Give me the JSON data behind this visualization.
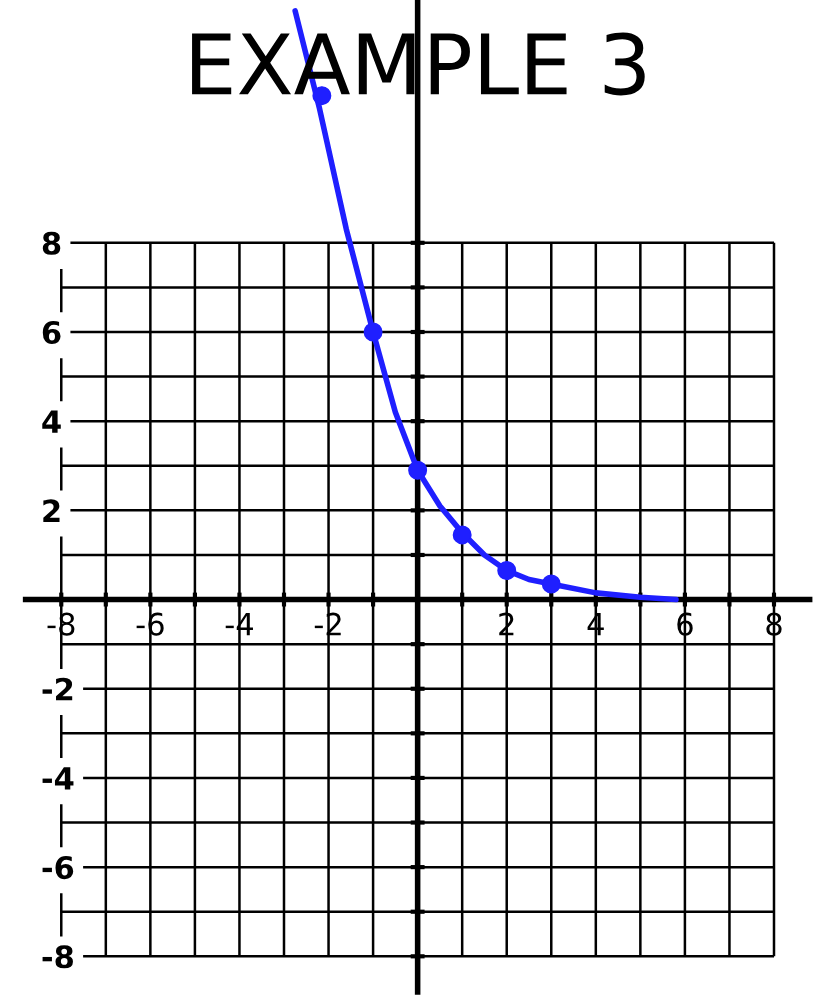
{
  "chart_data": {
    "type": "line",
    "title": "EXAMPLE 3",
    "xlim": [
      -8.8,
      8.8
    ],
    "ylim": [
      -8.8,
      13.4
    ],
    "xticks": [
      -8,
      {
        "value": -7,
        "label": null
      },
      -6,
      {
        "value": -5,
        "label": null
      },
      -4,
      {
        "value": -3,
        "label": null
      },
      -2,
      {
        "value": -1,
        "label": null
      },
      {
        "value": 0,
        "label": null
      },
      {
        "value": 1,
        "label": null
      },
      2,
      {
        "value": 3,
        "label": null
      },
      4,
      {
        "value": 5,
        "label": null
      },
      6,
      {
        "value": 7,
        "label": null
      },
      8
    ],
    "yticks": [
      -8,
      {
        "value": -7,
        "label": null
      },
      -6,
      {
        "value": -5,
        "label": null
      },
      -4,
      {
        "value": -3,
        "label": null
      },
      -2,
      {
        "value": -1,
        "label": null
      },
      {
        "value": 0,
        "label": null
      },
      {
        "value": 1,
        "label": null
      },
      2,
      {
        "value": 3,
        "label": null
      },
      4,
      {
        "value": 5,
        "label": null
      },
      6,
      {
        "value": 7,
        "label": null
      },
      8
    ],
    "grid": true,
    "series": [
      {
        "type": "line",
        "marker": "none",
        "color": "#1f1fff",
        "x": [
          -2.75,
          -2.2,
          -1.6,
          -1,
          -0.5,
          0,
          0.5,
          1,
          1.5,
          2,
          2.5,
          3,
          4,
          5,
          5.8
        ],
        "values": [
          13.2,
          11.0,
          8.3,
          6.0,
          4.2,
          2.9,
          2.1,
          1.5,
          1.0,
          0.65,
          0.45,
          0.35,
          0.15,
          0.05,
          0.0
        ]
      },
      {
        "type": "scatter",
        "marker": "circle",
        "color": "#1f1fff",
        "x": [
          -2.15,
          -1,
          0,
          1,
          2,
          3
        ],
        "values": [
          11.3,
          6.0,
          2.9,
          1.45,
          0.65,
          0.35
        ]
      }
    ]
  }
}
